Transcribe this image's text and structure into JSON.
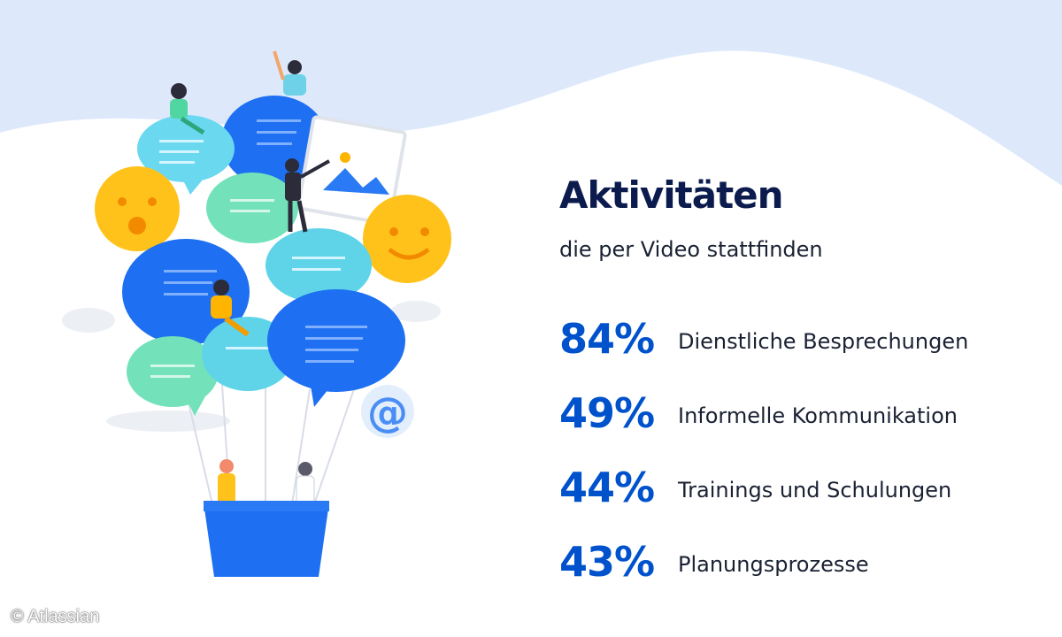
{
  "title": "Aktivitäten",
  "subtitle": "die per Video stattfinden",
  "chart_data": {
    "type": "table",
    "rows": [
      {
        "value": 84,
        "display": "84%",
        "label": "Dienstliche Besprechungen"
      },
      {
        "value": 49,
        "display": "49%",
        "label": "Informelle Kommunikation"
      },
      {
        "value": 44,
        "display": "44%",
        "label": "Trainings und Schulungen"
      },
      {
        "value": 43,
        "display": "43%",
        "label": "Planungsprozesse"
      }
    ]
  },
  "credit": "© Atlassian",
  "colors": {
    "accent": "#0052cc",
    "title": "#0b1b4d",
    "wave": "#dde9fb",
    "bubble_blue": "#1e6ff2",
    "bubble_teal": "#5fd3e8",
    "bubble_green": "#6fe0b8",
    "emoji_yellow": "#ffc21a"
  }
}
